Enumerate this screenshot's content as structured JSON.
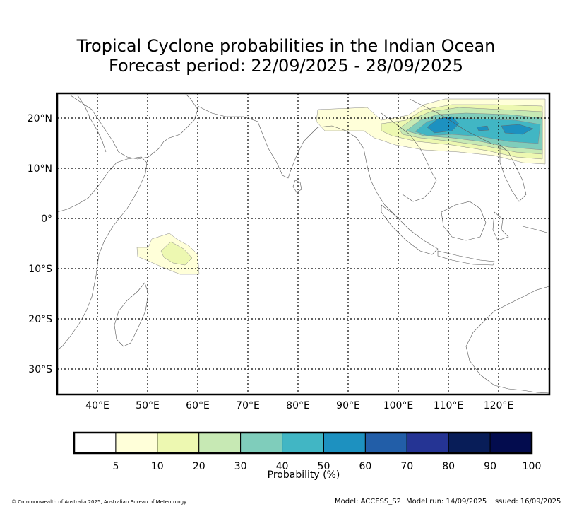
{
  "title": {
    "line1": "Tropical Cyclone probabilities in the Indian Ocean",
    "line2": "Forecast period: 22/09/2025 - 28/09/2025"
  },
  "map": {
    "lon_ticks": [
      "40°E",
      "50°E",
      "60°E",
      "70°E",
      "80°E",
      "90°E",
      "100°E",
      "110°E",
      "120°E"
    ],
    "lat_ticks": [
      "20°N",
      "10°N",
      "0°",
      "10°S",
      "20°S",
      "30°S"
    ]
  },
  "colorbar": {
    "title": "Probability (%)",
    "labels": [
      "5",
      "10",
      "20",
      "30",
      "40",
      "50",
      "60",
      "70",
      "80",
      "90",
      "100"
    ],
    "colors": [
      "#ffffff",
      "#ffffd9",
      "#edf8b1",
      "#c7e9b4",
      "#7fcdbb",
      "#41b6c4",
      "#1d91c0",
      "#225ea8",
      "#253494",
      "#081d58",
      "#030c4e"
    ]
  },
  "footer": {
    "copyright": "© Commonwealth of Australia 2025, Australian Bureau of Meteorology",
    "model": "Model: ACCESS_S2",
    "model_run": "Model run: 14/09/2025",
    "issued": "Issued: 16/09/2025"
  }
}
